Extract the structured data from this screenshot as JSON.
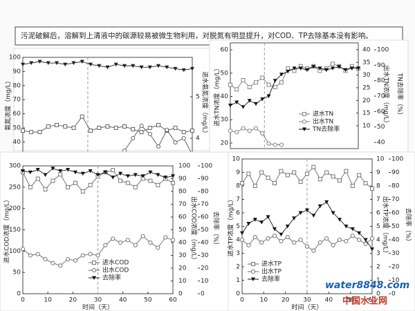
{
  "header": {
    "text": "污泥破解后，溶解到上清液中的碳源较易被微生物利用，对脱氮有明显提升，对COD、TP去除基本没有影响。"
  },
  "chart_data": [
    {
      "type": "line",
      "ylabel": "氨氮浓度（mg/L）",
      "y2label": "进水氨氮浓度（mg/L）",
      "xlim": [
        0,
        60
      ],
      "ylim": [
        0,
        100
      ],
      "yticks": [
        0,
        10,
        20,
        30,
        40,
        50,
        60,
        70,
        80,
        90,
        100
      ],
      "y2lim": [
        2.55,
        5.95
      ],
      "y2ticks": [
        4,
        5
      ],
      "vline": 23,
      "x": [
        0,
        3,
        6,
        9,
        12,
        15,
        18,
        21,
        24,
        27,
        30,
        33,
        36,
        39,
        42,
        45,
        48,
        51,
        54,
        57,
        60
      ],
      "series": [
        {
          "color": "#222222",
          "marker": "triangle",
          "values": [
            95,
            96,
            97,
            96,
            96,
            95,
            96,
            97,
            95,
            94,
            93,
            95,
            94,
            94,
            93,
            93,
            94,
            93,
            92,
            91,
            92
          ]
        },
        {
          "color": "#555555",
          "marker": "square",
          "values": [
            48,
            47,
            47,
            51,
            52,
            51,
            50,
            58,
            48,
            50,
            51,
            50,
            51,
            49,
            47,
            50,
            52,
            48,
            50,
            47,
            48
          ]
        },
        {
          "color": "#555555",
          "marker": "circle",
          "axis": "y2",
          "values": [
            null,
            null,
            null,
            null,
            null,
            null,
            null,
            null,
            null,
            3.4,
            3.4,
            3.5,
            3.7,
            4.0,
            4.3,
            4.1,
            3.8,
            4.2,
            3.9,
            4.0,
            3.6
          ]
        }
      ]
    },
    {
      "type": "line",
      "ylabel": "进水TN浓度（mg/L）",
      "y2label": "出水TN浓度（mg/L）",
      "y3label": "TN去除率（%）",
      "xlim": [
        0,
        60
      ],
      "ylim": [
        17.6,
        63
      ],
      "yticks": [
        20,
        30,
        40,
        50,
        60
      ],
      "y2lim": [
        1,
        42.7
      ],
      "y2ticks": [
        10,
        15,
        20,
        25,
        30,
        35,
        40
      ],
      "y3lim": [
        36,
        104.5
      ],
      "y3ticks": [
        40,
        50,
        60,
        70,
        80,
        90,
        100
      ],
      "vline": 16,
      "legend": "right",
      "x": [
        0,
        3,
        6,
        9,
        12,
        15,
        18,
        21,
        24,
        27,
        30,
        33,
        36,
        39,
        42,
        45,
        48,
        51,
        54,
        57,
        60
      ],
      "series": [
        {
          "name": "进水TN",
          "color": "#777777",
          "marker": "square",
          "values": [
            45,
            43,
            47,
            44,
            46,
            48,
            45,
            44,
            46,
            52,
            51,
            53,
            52,
            53,
            51,
            52,
            54,
            53,
            51,
            53,
            52
          ]
        },
        {
          "name": "出水TN",
          "color": "#777777",
          "marker": "circle",
          "axis": "y2",
          "values": [
            8,
            7.5,
            9,
            8,
            9,
            7,
            3,
            2.5,
            2.5,
            null,
            null,
            null,
            null,
            null,
            null,
            null,
            null,
            null,
            null,
            null,
            null
          ]
        },
        {
          "name": "TN去除率",
          "color": "#111111",
          "marker": "triangle",
          "axis": "y3",
          "values": [
            64,
            66,
            63,
            67,
            65,
            68,
            70,
            80,
            84,
            86,
            88,
            88,
            87,
            89,
            88,
            87,
            88,
            89,
            87,
            88,
            88
          ]
        }
      ]
    },
    {
      "type": "line",
      "xlabel": "时间（天）",
      "ylabel": "进水COD浓度（mg/L）",
      "y2label": "出水COD浓度（mg/L）",
      "y3label": "去除率（%）",
      "xlim": [
        0,
        60
      ],
      "xticks": [
        0,
        10,
        20,
        30,
        40,
        50,
        60
      ],
      "ylim": [
        0,
        300
      ],
      "yticks": [
        0,
        50,
        100,
        150,
        200,
        250,
        300
      ],
      "y2lim": [
        0,
        100
      ],
      "y2ticks": [
        0,
        10,
        20,
        30,
        40,
        50,
        60,
        70,
        80,
        90,
        100
      ],
      "y3lim": [
        0,
        100
      ],
      "y3ticks": [
        0,
        10,
        20,
        30,
        40,
        50,
        60,
        70,
        80,
        90,
        100
      ],
      "vline": 30,
      "legend": "bottom",
      "x": [
        0,
        3,
        6,
        9,
        12,
        15,
        18,
        21,
        24,
        27,
        30,
        33,
        36,
        39,
        42,
        45,
        48,
        51,
        54,
        57,
        60
      ],
      "series": [
        {
          "name": "进水COD",
          "color": "#666666",
          "marker": "square",
          "values": [
            285,
            250,
            270,
            245,
            265,
            280,
            250,
            260,
            240,
            255,
            275,
            285,
            290,
            265,
            260,
            250,
            270,
            265,
            255,
            270,
            260
          ]
        },
        {
          "name": "出水COD",
          "color": "#666666",
          "marker": "circle",
          "axis": "y2",
          "values": [
            35,
            30,
            31,
            27,
            24,
            22,
            27,
            26,
            30,
            31,
            30,
            38,
            43,
            40,
            42,
            38,
            45,
            40,
            36,
            44,
            42
          ]
        },
        {
          "name": "去除率",
          "color": "#111111",
          "marker": "triangle",
          "axis": "y3",
          "values": [
            96,
            95,
            97,
            93,
            98,
            96,
            97,
            95,
            94,
            96,
            93,
            95,
            91,
            94,
            92,
            93,
            92,
            95,
            93,
            91,
            92
          ]
        }
      ]
    },
    {
      "type": "line",
      "xlabel": "时间（天）",
      "ylabel": "进水TP浓度（mg/L）",
      "y2label": "出水TP浓度（mg/L）",
      "y3label": "去除率（%）",
      "xlim": [
        0,
        60
      ],
      "xticks": [
        0,
        10,
        20,
        30,
        40,
        50,
        60
      ],
      "ylim": [
        0,
        10
      ],
      "yticks": [
        0,
        1,
        2,
        3,
        4,
        5,
        6,
        7,
        8,
        9,
        10
      ],
      "y2lim": [
        0,
        10
      ],
      "y2ticks": [
        0,
        1,
        2,
        3,
        4,
        5,
        6,
        7,
        8,
        9,
        10
      ],
      "y3lim": [
        0,
        100
      ],
      "y3ticks": [
        0,
        10,
        20,
        30,
        40,
        50,
        60,
        70,
        80,
        90,
        100
      ],
      "vline": 30,
      "legend": "bottom",
      "x": [
        0,
        3,
        6,
        9,
        12,
        15,
        18,
        21,
        24,
        27,
        30,
        33,
        36,
        39,
        42,
        45,
        48,
        51,
        54,
        57,
        60
      ],
      "series": [
        {
          "name": "进水TP",
          "color": "#666666",
          "marker": "square",
          "values": [
            8.2,
            8.9,
            8.0,
            9.0,
            8.6,
            8.2,
            9.1,
            8.8,
            9.0,
            8.3,
            8.9,
            9.4,
            8.5,
            9.0,
            8.7,
            8.4,
            9.1,
            8.0,
            8.8,
            8.2,
            7.8
          ]
        },
        {
          "name": "出水TP",
          "color": "#666666",
          "marker": "circle",
          "axis": "y2",
          "values": [
            4.0,
            3.6,
            4.2,
            3.8,
            4.1,
            4.3,
            3.9,
            4.2,
            3.8,
            4.0,
            3.5,
            3.2,
            3.8,
            4.1,
            3.6,
            4.0,
            3.9,
            4.3,
            4.0,
            3.7,
            4.1
          ]
        },
        {
          "name": "去除率",
          "color": "#111111",
          "marker": "triangle",
          "axis": "y3",
          "values": [
            45,
            52,
            55,
            53,
            57,
            48,
            44,
            50,
            56,
            60,
            62,
            58,
            65,
            68,
            60,
            55,
            50,
            48,
            45,
            40,
            33
          ]
        }
      ]
    }
  ],
  "watermark": {
    "site": "water8848.com",
    "name": "中国水业网"
  }
}
